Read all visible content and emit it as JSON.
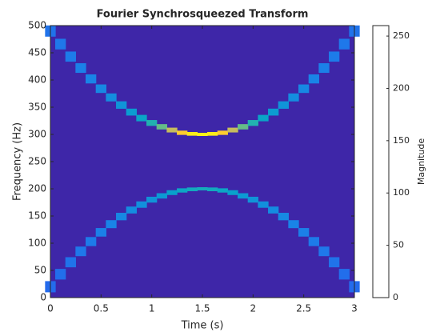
{
  "chart_data": {
    "type": "ridge",
    "title": "Fourier Synchrosqueezed Transform",
    "xlabel": "Time (s)",
    "ylabel": "Frequency (Hz)",
    "xlim": [
      0,
      3
    ],
    "xticks": [
      0,
      0.5,
      1,
      1.5,
      2,
      2.5,
      3
    ],
    "ylim": [
      0,
      500
    ],
    "yticks": [
      0,
      50,
      100,
      150,
      200,
      250,
      300,
      350,
      400,
      450,
      500
    ],
    "colormap": [
      "#3e26a8",
      "#2f4ff0",
      "#1a83e8",
      "#06a4ca",
      "#2eb7a4",
      "#87bf77",
      "#d1bb59",
      "#fec832",
      "#f9fb0e"
    ],
    "colorbar": {
      "label": "Magnitude",
      "lim": [
        0,
        260
      ],
      "ticks": [
        0,
        50,
        100,
        150,
        200,
        250
      ]
    },
    "x": [
      0,
      0.1,
      0.2,
      0.3,
      0.4,
      0.5,
      0.6,
      0.7,
      0.8,
      0.9,
      1.0,
      1.1,
      1.2,
      1.3,
      1.4,
      1.5,
      1.6,
      1.7,
      1.8,
      1.9,
      2.0,
      2.1,
      2.2,
      2.3,
      2.4,
      2.5,
      2.6,
      2.7,
      2.8,
      2.9,
      3.0
    ],
    "series": [
      {
        "values": [
          490,
          466,
          443,
          422,
          402,
          384,
          368,
          354,
          341,
          330,
          321,
          314,
          308,
          303,
          301,
          300,
          301,
          303,
          308,
          314,
          321,
          330,
          341,
          354,
          368,
          384,
          402,
          422,
          443,
          466,
          490
        ],
        "magnitude": [
          55,
          58,
          60,
          63,
          66,
          70,
          75,
          82,
          90,
          100,
          120,
          150,
          190,
          230,
          250,
          255,
          250,
          230,
          190,
          150,
          120,
          100,
          90,
          82,
          75,
          70,
          66,
          63,
          60,
          58,
          55
        ]
      },
      {
        "values": [
          20,
          43,
          65,
          85,
          103,
          120,
          135,
          149,
          161,
          171,
          180,
          187,
          193,
          197,
          199,
          200,
          199,
          197,
          193,
          187,
          180,
          171,
          161,
          149,
          135,
          120,
          103,
          85,
          65,
          43,
          20
        ],
        "magnitude": [
          50,
          52,
          55,
          58,
          60,
          63,
          66,
          70,
          74,
          78,
          82,
          88,
          95,
          102,
          108,
          110,
          108,
          102,
          95,
          88,
          82,
          78,
          74,
          70,
          66,
          63,
          60,
          58,
          55,
          52,
          50
        ]
      }
    ]
  }
}
